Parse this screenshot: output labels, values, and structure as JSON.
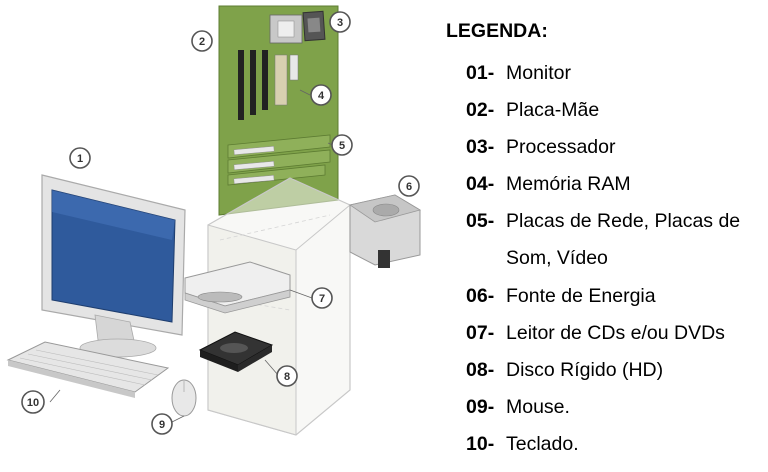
{
  "legend": {
    "title": "LEGENDA:",
    "items": [
      {
        "num": "01-",
        "text": "Monitor"
      },
      {
        "num": "02-",
        "text": "Placa-Mãe"
      },
      {
        "num": "03-",
        "text": "Processador"
      },
      {
        "num": "04-",
        "text": "Memória RAM"
      },
      {
        "num": "05-",
        "text": "Placas de Rede, Placas de Som, Vídeo"
      },
      {
        "num": "06-",
        "text": "Fonte de Energia"
      },
      {
        "num": "07-",
        "text": "Leitor de CDs e/ou DVDs"
      },
      {
        "num": "08-",
        "text": "Disco Rígido (HD)"
      },
      {
        "num": "09-",
        "text": "Mouse."
      },
      {
        "num": "10-",
        "text": "Teclado."
      }
    ]
  },
  "callouts": [
    "1",
    "2",
    "3",
    "4",
    "5",
    "6",
    "7",
    "8",
    "9",
    "10"
  ],
  "colors": {
    "motherboard": "#7fa24a",
    "screen": "#2f5a9c",
    "case_outline": "#c8c8c8",
    "callout_ring": "#555555"
  }
}
